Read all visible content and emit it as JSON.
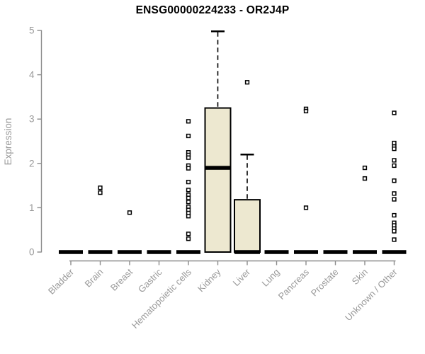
{
  "chart": {
    "title": "ENSG00000224233 - OR2J4P",
    "ylabel": "Expression"
  },
  "chart_data": {
    "type": "box",
    "title": "ENSG00000224233 - OR2J4P",
    "xlabel": "",
    "ylabel": "Expression",
    "ylim": [
      0,
      5
    ],
    "yticks": [
      0,
      1,
      2,
      3,
      4,
      5
    ],
    "grid": false,
    "legend": "none",
    "categories": [
      "Bladder",
      "Brain",
      "Breast",
      "Gastric",
      "Hematopoietic cells",
      "Kidney",
      "Liver",
      "Lung",
      "Pancreas",
      "Prostate",
      "Skin",
      "Unknown / Other"
    ],
    "boxes": [
      {
        "category": "Bladder",
        "low": 0,
        "q1": 0,
        "median": 0,
        "q3": 0,
        "high": 0,
        "outliers": []
      },
      {
        "category": "Brain",
        "low": 0,
        "q1": 0,
        "median": 0,
        "q3": 0,
        "high": 0,
        "outliers": [
          1.45,
          1.34
        ]
      },
      {
        "category": "Breast",
        "low": 0,
        "q1": 0,
        "median": 0,
        "q3": 0,
        "high": 0,
        "outliers": [
          0.89
        ]
      },
      {
        "category": "Gastric",
        "low": 0,
        "q1": 0,
        "median": 0,
        "q3": 0,
        "high": 0,
        "outliers": []
      },
      {
        "category": "Hematopoietic cells",
        "low": 0,
        "q1": 0,
        "median": 0,
        "q3": 0,
        "high": 0,
        "outliers": [
          2.95,
          2.62,
          2.25,
          2.19,
          2.13,
          1.95,
          1.89,
          1.58,
          1.4,
          1.29,
          1.22,
          1.13,
          1.02,
          0.95,
          0.88,
          0.81,
          0.41,
          0.3
        ]
      },
      {
        "category": "Kidney",
        "low": 0,
        "q1": 0,
        "median": 1.9,
        "q3": 3.25,
        "high": 4.98,
        "outliers": []
      },
      {
        "category": "Liver",
        "low": 0,
        "q1": 0,
        "median": 0,
        "q3": 1.18,
        "high": 2.2,
        "outliers": [
          3.83
        ]
      },
      {
        "category": "Lung",
        "low": 0,
        "q1": 0,
        "median": 0,
        "q3": 0,
        "high": 0,
        "outliers": []
      },
      {
        "category": "Pancreas",
        "low": 0,
        "q1": 0,
        "median": 0,
        "q3": 0,
        "high": 0,
        "outliers": [
          3.23,
          3.18,
          1.0
        ]
      },
      {
        "category": "Prostate",
        "low": 0,
        "q1": 0,
        "median": 0,
        "q3": 0,
        "high": 0,
        "outliers": []
      },
      {
        "category": "Skin",
        "low": 0,
        "q1": 0,
        "median": 0,
        "q3": 0,
        "high": 0,
        "outliers": [
          1.9,
          1.66
        ]
      },
      {
        "category": "Unknown / Other",
        "low": 0,
        "q1": 0,
        "median": 0,
        "q3": 0,
        "high": 0,
        "outliers": [
          3.14,
          2.46,
          2.38,
          2.33,
          2.07,
          1.95,
          1.61,
          1.32,
          1.19,
          0.83,
          0.66,
          0.6,
          0.53,
          0.47,
          0.28
        ]
      }
    ],
    "colors": {
      "background": "#ffffff",
      "box_fill": "#ede8d0",
      "box_stroke": "#000000",
      "median": "#000000",
      "outlier_stroke": "#000000",
      "axis": "#8c8c8c",
      "tick_label": "#999999",
      "title": "#000000"
    }
  }
}
